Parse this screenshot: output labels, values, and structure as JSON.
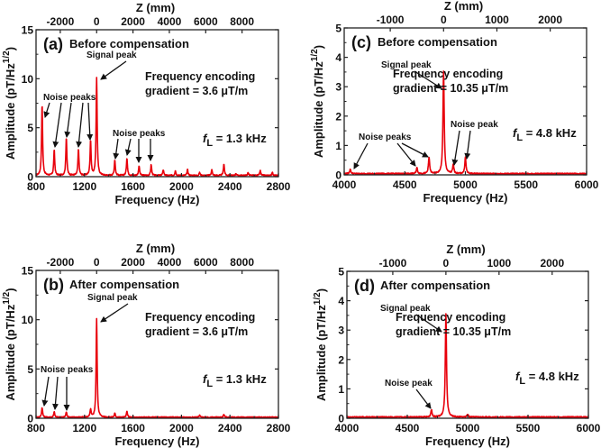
{
  "chart_data": [
    {
      "id": "a",
      "type": "line",
      "letter": "(a)",
      "title": "Before compensation",
      "xlabel": "Frequency (Hz)",
      "ylabel": "Amplitude (pT/Hz",
      "ylabel_sup": "1/2",
      "ylabel_close": ")",
      "top_xlabel": "Z (mm)",
      "xlim": [
        800,
        2800
      ],
      "ylim": [
        0,
        15
      ],
      "xticks": [
        800,
        1200,
        1600,
        2000,
        2400,
        2800
      ],
      "xtick_labels": [
        "800",
        "1200",
        "1600",
        "2000",
        "2400",
        "2800"
      ],
      "yticks": [
        0,
        5,
        10,
        15
      ],
      "ytick_labels": [
        "0",
        "5",
        "10",
        "15"
      ],
      "top_ticks_freq": [
        1000,
        1300,
        1600,
        1900,
        2200,
        2500
      ],
      "top_tick_labels": [
        "-2000",
        "0",
        "2000",
        "4000",
        "6000",
        "8000"
      ],
      "line_color": "#e8000b",
      "baseline": 0.12,
      "peak_width_hz": 5,
      "peaks": [
        {
          "f": 850,
          "a": 7.3
        },
        {
          "f": 950,
          "a": 2.6
        },
        {
          "f": 1050,
          "a": 3.9
        },
        {
          "f": 1150,
          "a": 2.7
        },
        {
          "f": 1250,
          "a": 3.6
        },
        {
          "f": 1300,
          "a": 10.0
        },
        {
          "f": 1450,
          "a": 1.6
        },
        {
          "f": 1550,
          "a": 1.8
        },
        {
          "f": 1650,
          "a": 1.0
        },
        {
          "f": 1750,
          "a": 1.1
        },
        {
          "f": 1850,
          "a": 0.6
        },
        {
          "f": 1950,
          "a": 0.5
        },
        {
          "f": 2050,
          "a": 0.6
        },
        {
          "f": 2150,
          "a": 0.3
        },
        {
          "f": 2250,
          "a": 0.6
        },
        {
          "f": 2350,
          "a": 1.2
        },
        {
          "f": 2450,
          "a": 0.2
        },
        {
          "f": 2550,
          "a": 0.3
        },
        {
          "f": 2650,
          "a": 0.5
        },
        {
          "f": 2750,
          "a": 0.3
        }
      ],
      "annotations": {
        "signal_label": "Signal peak",
        "noise_label": "Noise peaks",
        "noise_label_2": "Noise peaks",
        "info_line1": "Frequency encoding",
        "info_line2": "gradient = 3.6  μT/m",
        "fl_symbol": "f",
        "fl_sub": "L",
        "fl_value": " = 1.3 kHz"
      }
    },
    {
      "id": "b",
      "type": "line",
      "letter": "(b)",
      "title": "After compensation",
      "xlabel": "Frequency (Hz)",
      "ylabel": "Amplitude (pT/Hz",
      "ylabel_sup": "1/2",
      "ylabel_close": ")",
      "top_xlabel": "Z (mm)",
      "xlim": [
        800,
        2800
      ],
      "ylim": [
        0,
        15
      ],
      "xticks": [
        800,
        1200,
        1600,
        2000,
        2400,
        2800
      ],
      "xtick_labels": [
        "800",
        "1200",
        "1600",
        "2000",
        "2400",
        "2800"
      ],
      "yticks": [
        0,
        5,
        10,
        15
      ],
      "ytick_labels": [
        "0",
        "5",
        "10",
        "15"
      ],
      "top_ticks_freq": [
        1000,
        1300,
        1600,
        1900,
        2200,
        2500
      ],
      "top_tick_labels": [
        "-2000",
        "0",
        "2000",
        "4000",
        "6000",
        "8000"
      ],
      "line_color": "#e8000b",
      "baseline": 0.1,
      "peak_width_hz": 5,
      "peaks": [
        {
          "f": 850,
          "a": 1.0
        },
        {
          "f": 950,
          "a": 0.55
        },
        {
          "f": 1050,
          "a": 0.55
        },
        {
          "f": 1250,
          "a": 0.8
        },
        {
          "f": 1300,
          "a": 10.0
        },
        {
          "f": 1450,
          "a": 0.4
        },
        {
          "f": 1550,
          "a": 0.6
        },
        {
          "f": 2150,
          "a": 0.2
        },
        {
          "f": 2350,
          "a": 0.3
        }
      ],
      "annotations": {
        "signal_label": "Signal peak",
        "noise_label": "Noise peaks",
        "info_line1": "Frequency encoding",
        "info_line2": "gradient = 3.6  μT/m",
        "fl_symbol": "f",
        "fl_sub": "L",
        "fl_value": " = 1.3 kHz"
      }
    },
    {
      "id": "c",
      "type": "line",
      "letter": "(c)",
      "title": "Before compensation",
      "xlabel": "Frequency (Hz)",
      "ylabel": "Amplitude (pT/Hz",
      "ylabel_sup": "1/2",
      "ylabel_close": ")",
      "top_xlabel": "Z (mm)",
      "xlim": [
        4000,
        6000
      ],
      "ylim": [
        0,
        5
      ],
      "xticks": [
        4000,
        4500,
        5000,
        5500,
        6000
      ],
      "xtick_labels": [
        "4000",
        "4500",
        "5000",
        "5500",
        "6000"
      ],
      "yticks": [
        0,
        1,
        2,
        3,
        4,
        5
      ],
      "ytick_labels": [
        "0",
        "1",
        "2",
        "3",
        "4",
        "5"
      ],
      "top_ticks_freq": [
        4380,
        4820,
        5260,
        5700
      ],
      "top_tick_labels": [
        "-1000",
        "0",
        "1000",
        "2000"
      ],
      "line_color": "#e8000b",
      "baseline": 0.04,
      "peak_width_hz": 6,
      "peaks": [
        {
          "f": 4050,
          "a": 0.15
        },
        {
          "f": 4600,
          "a": 0.2
        },
        {
          "f": 4700,
          "a": 0.55
        },
        {
          "f": 4820,
          "a": 3.5
        },
        {
          "f": 4900,
          "a": 0.3
        },
        {
          "f": 5000,
          "a": 0.55
        }
      ],
      "annotations": {
        "signal_label": "Signal peak",
        "noise_label": "Noise peaks",
        "noise_label_2": "Noise peak",
        "info_line1": "Frequency encoding",
        "info_line2": "gradient = 10.35 μT/m",
        "fl_symbol": "f",
        "fl_sub": "L",
        "fl_value": " = 4.8 kHz"
      }
    },
    {
      "id": "d",
      "type": "line",
      "letter": "(d)",
      "title": "After compensation",
      "xlabel": "Frequency (Hz)",
      "ylabel": "Amplitude (pT/Hz",
      "ylabel_sup": "1/2",
      "ylabel_close": ")",
      "top_xlabel": "Z (mm)",
      "xlim": [
        4000,
        6000
      ],
      "ylim": [
        0,
        5
      ],
      "xticks": [
        4000,
        4500,
        5000,
        5500,
        6000
      ],
      "xtick_labels": [
        "4000",
        "4500",
        "5000",
        "5500",
        "6000"
      ],
      "yticks": [
        0,
        1,
        2,
        3,
        4,
        5
      ],
      "ytick_labels": [
        "0",
        "1",
        "2",
        "3",
        "4",
        "5"
      ],
      "top_ticks_freq": [
        4380,
        4820,
        5260,
        5700
      ],
      "top_tick_labels": [
        "-1000",
        "0",
        "1000",
        "2000"
      ],
      "line_color": "#e8000b",
      "baseline": 0.04,
      "peak_width_hz": 6,
      "peaks": [
        {
          "f": 4700,
          "a": 0.25
        },
        {
          "f": 4820,
          "a": 3.5
        },
        {
          "f": 5000,
          "a": 0.1
        }
      ],
      "annotations": {
        "signal_label": "Signal peak",
        "noise_label": "Noise peak",
        "info_line1": "Frequency encoding",
        "info_line2": "gradient = 10.35 μT/m",
        "fl_symbol": "f",
        "fl_sub": "L",
        "fl_value": " = 4.8 kHz"
      }
    }
  ]
}
